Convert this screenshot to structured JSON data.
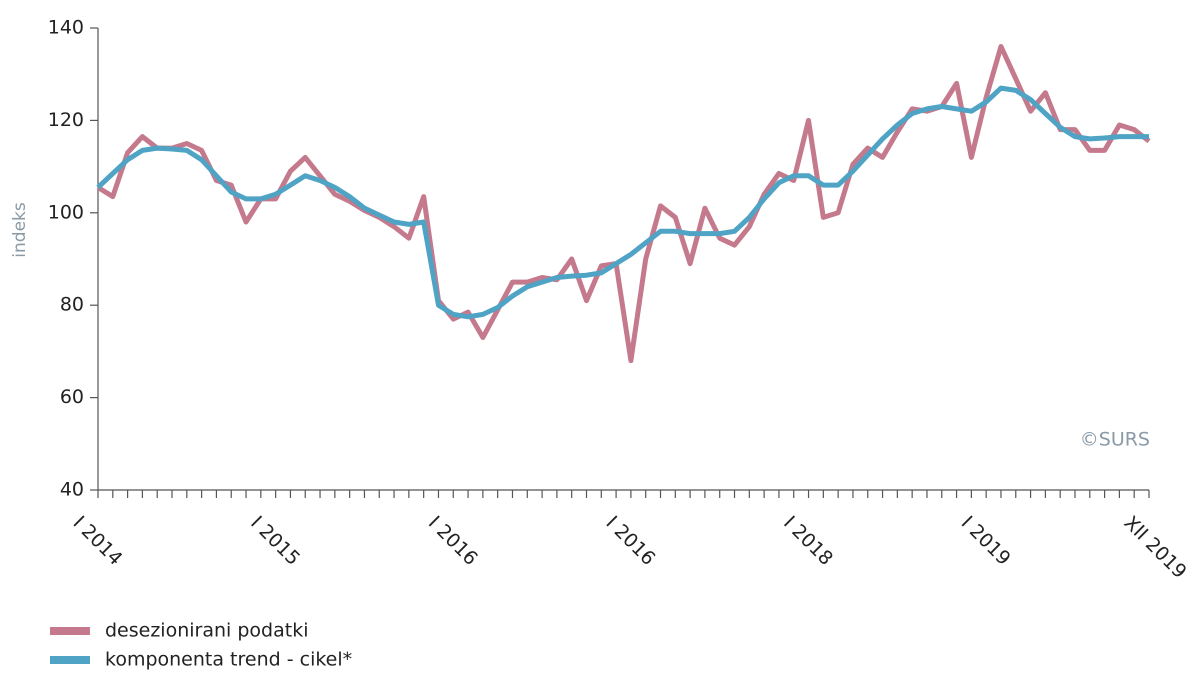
{
  "chart_data": {
    "type": "line",
    "y_label": "indeks",
    "annotation": "©SURS",
    "categories": [
      "I 2014",
      null,
      null,
      null,
      null,
      null,
      null,
      null,
      null,
      null,
      null,
      null,
      "I 2015",
      null,
      null,
      null,
      null,
      null,
      null,
      null,
      null,
      null,
      null,
      null,
      "I 2016",
      null,
      null,
      null,
      null,
      null,
      null,
      null,
      null,
      null,
      null,
      null,
      "I 2016",
      null,
      null,
      null,
      null,
      null,
      null,
      null,
      null,
      null,
      null,
      null,
      "I 2018",
      null,
      null,
      null,
      null,
      null,
      null,
      null,
      null,
      null,
      null,
      null,
      "I 2019",
      null,
      null,
      null,
      null,
      null,
      null,
      null,
      null,
      null,
      null,
      "XII 2019"
    ],
    "series": [
      {
        "name": "desezionirani podatki",
        "color": "#c47a8c",
        "values": [
          105.5,
          103.5,
          113,
          116.5,
          114,
          114,
          115,
          113.5,
          107,
          106,
          98,
          103,
          103,
          109,
          112,
          108,
          104,
          102.5,
          100.5,
          99,
          97,
          94.5,
          103.5,
          81,
          77,
          78.5,
          73,
          79,
          85,
          85,
          86,
          85.5,
          90,
          81,
          88.5,
          89,
          68,
          90,
          101.5,
          99,
          89,
          101,
          94.5,
          93,
          97,
          104,
          108.5,
          107,
          120,
          99,
          100,
          110.5,
          114,
          112,
          117.5,
          122.5,
          122,
          123,
          128,
          112,
          125,
          136,
          129,
          122,
          126,
          118,
          118,
          113.5,
          113.5,
          119,
          118,
          115.5
        ]
      },
      {
        "name": "komponenta trend - cikel*",
        "color": "#4fa3c4",
        "values": [
          105.5,
          108.5,
          111.5,
          113.5,
          114,
          113.8,
          113.5,
          111.5,
          108,
          104.5,
          103,
          103,
          104,
          106,
          108,
          107,
          105.5,
          103.5,
          101,
          99.5,
          98,
          97.5,
          98,
          80,
          78,
          77.5,
          78,
          79.5,
          82,
          84,
          85,
          86,
          86.3,
          86.5,
          87,
          89,
          91,
          93.5,
          96,
          96,
          95.5,
          95.5,
          95.5,
          96,
          99,
          103,
          106.5,
          108,
          108,
          106,
          106,
          109,
          112.5,
          116,
          119,
          121.5,
          122.5,
          123,
          122.5,
          122,
          124,
          127,
          126.5,
          124.5,
          121.5,
          118.5,
          116.5,
          116,
          116.2,
          116.5,
          116.5,
          116.5
        ]
      }
    ],
    "ylim": [
      40,
      140
    ],
    "yticks": [
      40,
      60,
      80,
      100,
      120,
      140
    ],
    "grid": false
  }
}
